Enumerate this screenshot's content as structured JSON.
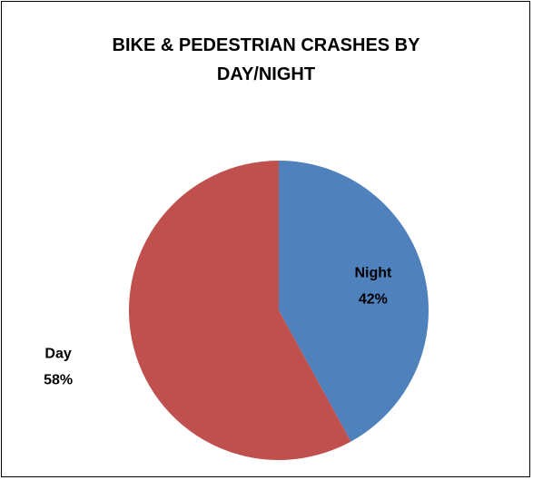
{
  "chart_data": {
    "type": "pie",
    "title": "BIKE & PEDESTRIAN CRASHES BY DAY/NIGHT",
    "categories": [
      "Night",
      "Day"
    ],
    "values": [
      42,
      58
    ],
    "value_labels": [
      "42%",
      "58%"
    ],
    "colors": [
      "#4f81bd",
      "#c0504d"
    ]
  }
}
